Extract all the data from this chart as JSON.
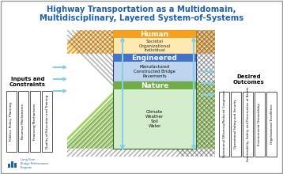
{
  "title_line1": "Highway Transportation as a Multidomain,",
  "title_line2": "Multidisciplinary, Layered System-of-Systems",
  "title_color": "#1F5FAD",
  "bg_color": "#FFFFFF",
  "border_color": "#888888",
  "inputs_label": "Inputs and\nConstraints",
  "inputs_boxes": [
    "Politics, Policy, Planning",
    "Revenue Mechanisms",
    "Financing Mechanisms",
    "Quality of Education and Training"
  ],
  "outcomes_label": "Desired\nOutcomes",
  "outcomes_boxes": [
    "Operational Efficiency/Reduced Congestion",
    "Operational Safety and Security",
    "Serviceability, Safety and Preservation of Assets",
    "Environmental Stewardship",
    "Organizational Excellence"
  ],
  "human_label": "Human",
  "human_sub": "Societal\nOrganizational\nIndividual",
  "human_header_color": "#F4A020",
  "human_bg_color": "#FDE8B0",
  "eng_label": "Engineered",
  "eng_sub": "Manufactured\nConstructed Bridge\nPavements",
  "eng_header_color": "#4472C4",
  "eng_bg_color": "#BDD5EF",
  "nat_label": "Nature",
  "nat_sub": "Climate\nWeather\nSoil\nWater",
  "nat_header_color": "#70AD47",
  "nat_bg_color": "#D4EDCC",
  "orange_stripe": "#F4A020",
  "green_stripe": "#92D050",
  "dark_stripe": "#404040",
  "logo_text": "Long Term\nBridge Performance\nProgram",
  "logo_color": "#1F5FAD"
}
